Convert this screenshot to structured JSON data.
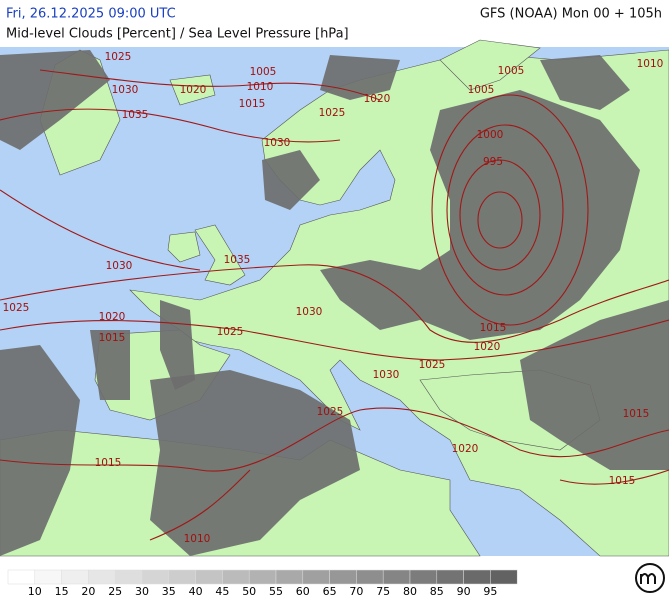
{
  "header": {
    "left_title": "Fri, 26.12.2025 09:00 UTC",
    "subtitle": "Mid-level Clouds [Percent] / Sea Level Pressure [hPa]",
    "right_title": "GFS (NOAA) Mon 00 + 105h"
  },
  "isobar_labels": [
    1025,
    1030,
    1035,
    1020,
    1005,
    1010,
    1015,
    1030,
    1025,
    1020,
    1005,
    1005,
    1010,
    1000,
    995,
    1030,
    1035,
    1025,
    1020,
    1015,
    1025,
    1030,
    1015,
    1020,
    1025,
    1030,
    1025,
    1015,
    1020,
    1015,
    1015,
    1010
  ],
  "legend": {
    "labels": [
      10,
      15,
      20,
      25,
      30,
      35,
      40,
      45,
      50,
      55,
      60,
      65,
      70,
      75,
      80,
      85,
      90,
      95
    ],
    "colors": [
      "#ffffff",
      "#f7f7f7",
      "#efefef",
      "#e6e6e6",
      "#dedede",
      "#d5d5d5",
      "#cdcdcd",
      "#c4c4c4",
      "#bbbbbb",
      "#b2b2b2",
      "#a9a9a9",
      "#a0a0a0",
      "#979797",
      "#8e8e8e",
      "#858585",
      "#7c7c7c",
      "#737373",
      "#6a6a6a",
      "#626262"
    ]
  }
}
